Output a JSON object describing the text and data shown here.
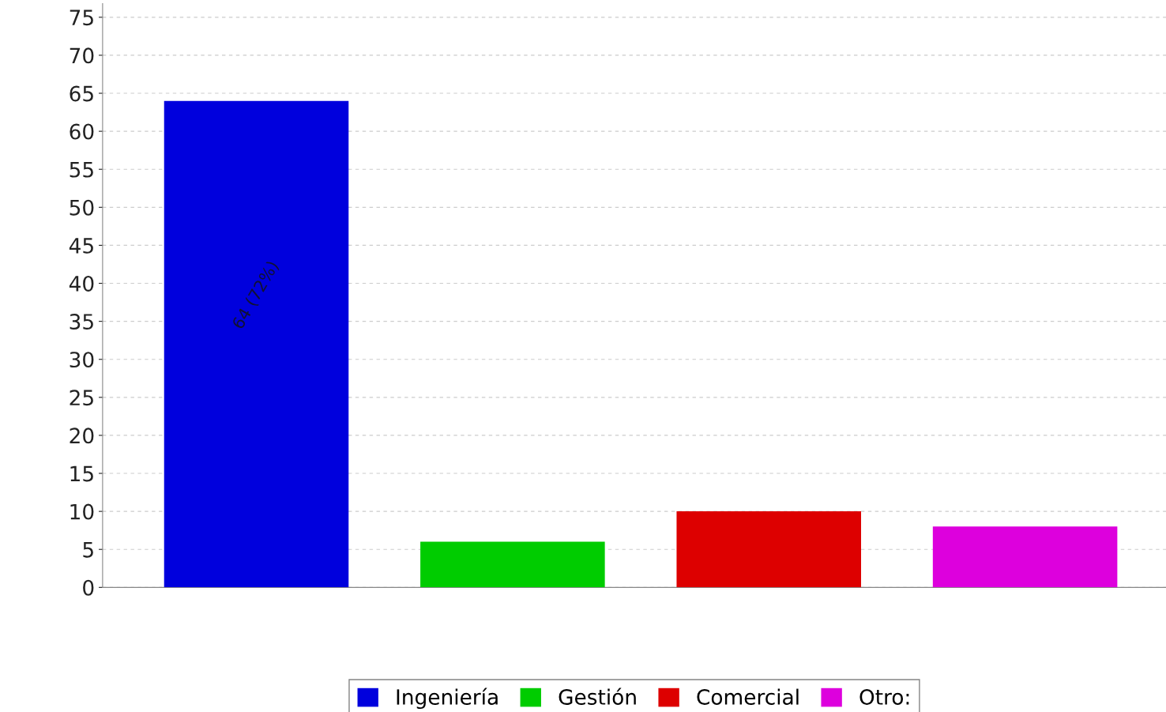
{
  "chart_data": {
    "type": "bar",
    "categories": [
      null,
      null,
      null,
      null
    ],
    "series": [
      {
        "name": "Ingeniería",
        "color": "#0000dd",
        "values": [
          64,
          null,
          null,
          null
        ],
        "value_labels": [
          "64 (72%)",
          null,
          null,
          null
        ]
      },
      {
        "name": "Gestión",
        "color": "#00cc00",
        "values": [
          null,
          6,
          null,
          null
        ]
      },
      {
        "name": "Comercial",
        "color": "#dd0000",
        "values": [
          null,
          null,
          10,
          null
        ]
      },
      {
        "name": "Otro:",
        "color": "#dd00dd",
        "values": [
          null,
          null,
          null,
          8
        ]
      }
    ],
    "ylim": [
      0,
      76.8
    ],
    "yticks": [
      0,
      5,
      10,
      15,
      20,
      25,
      30,
      35,
      40,
      45,
      50,
      55,
      60,
      65,
      70,
      75
    ],
    "grid": "y",
    "legend": "bottom"
  }
}
